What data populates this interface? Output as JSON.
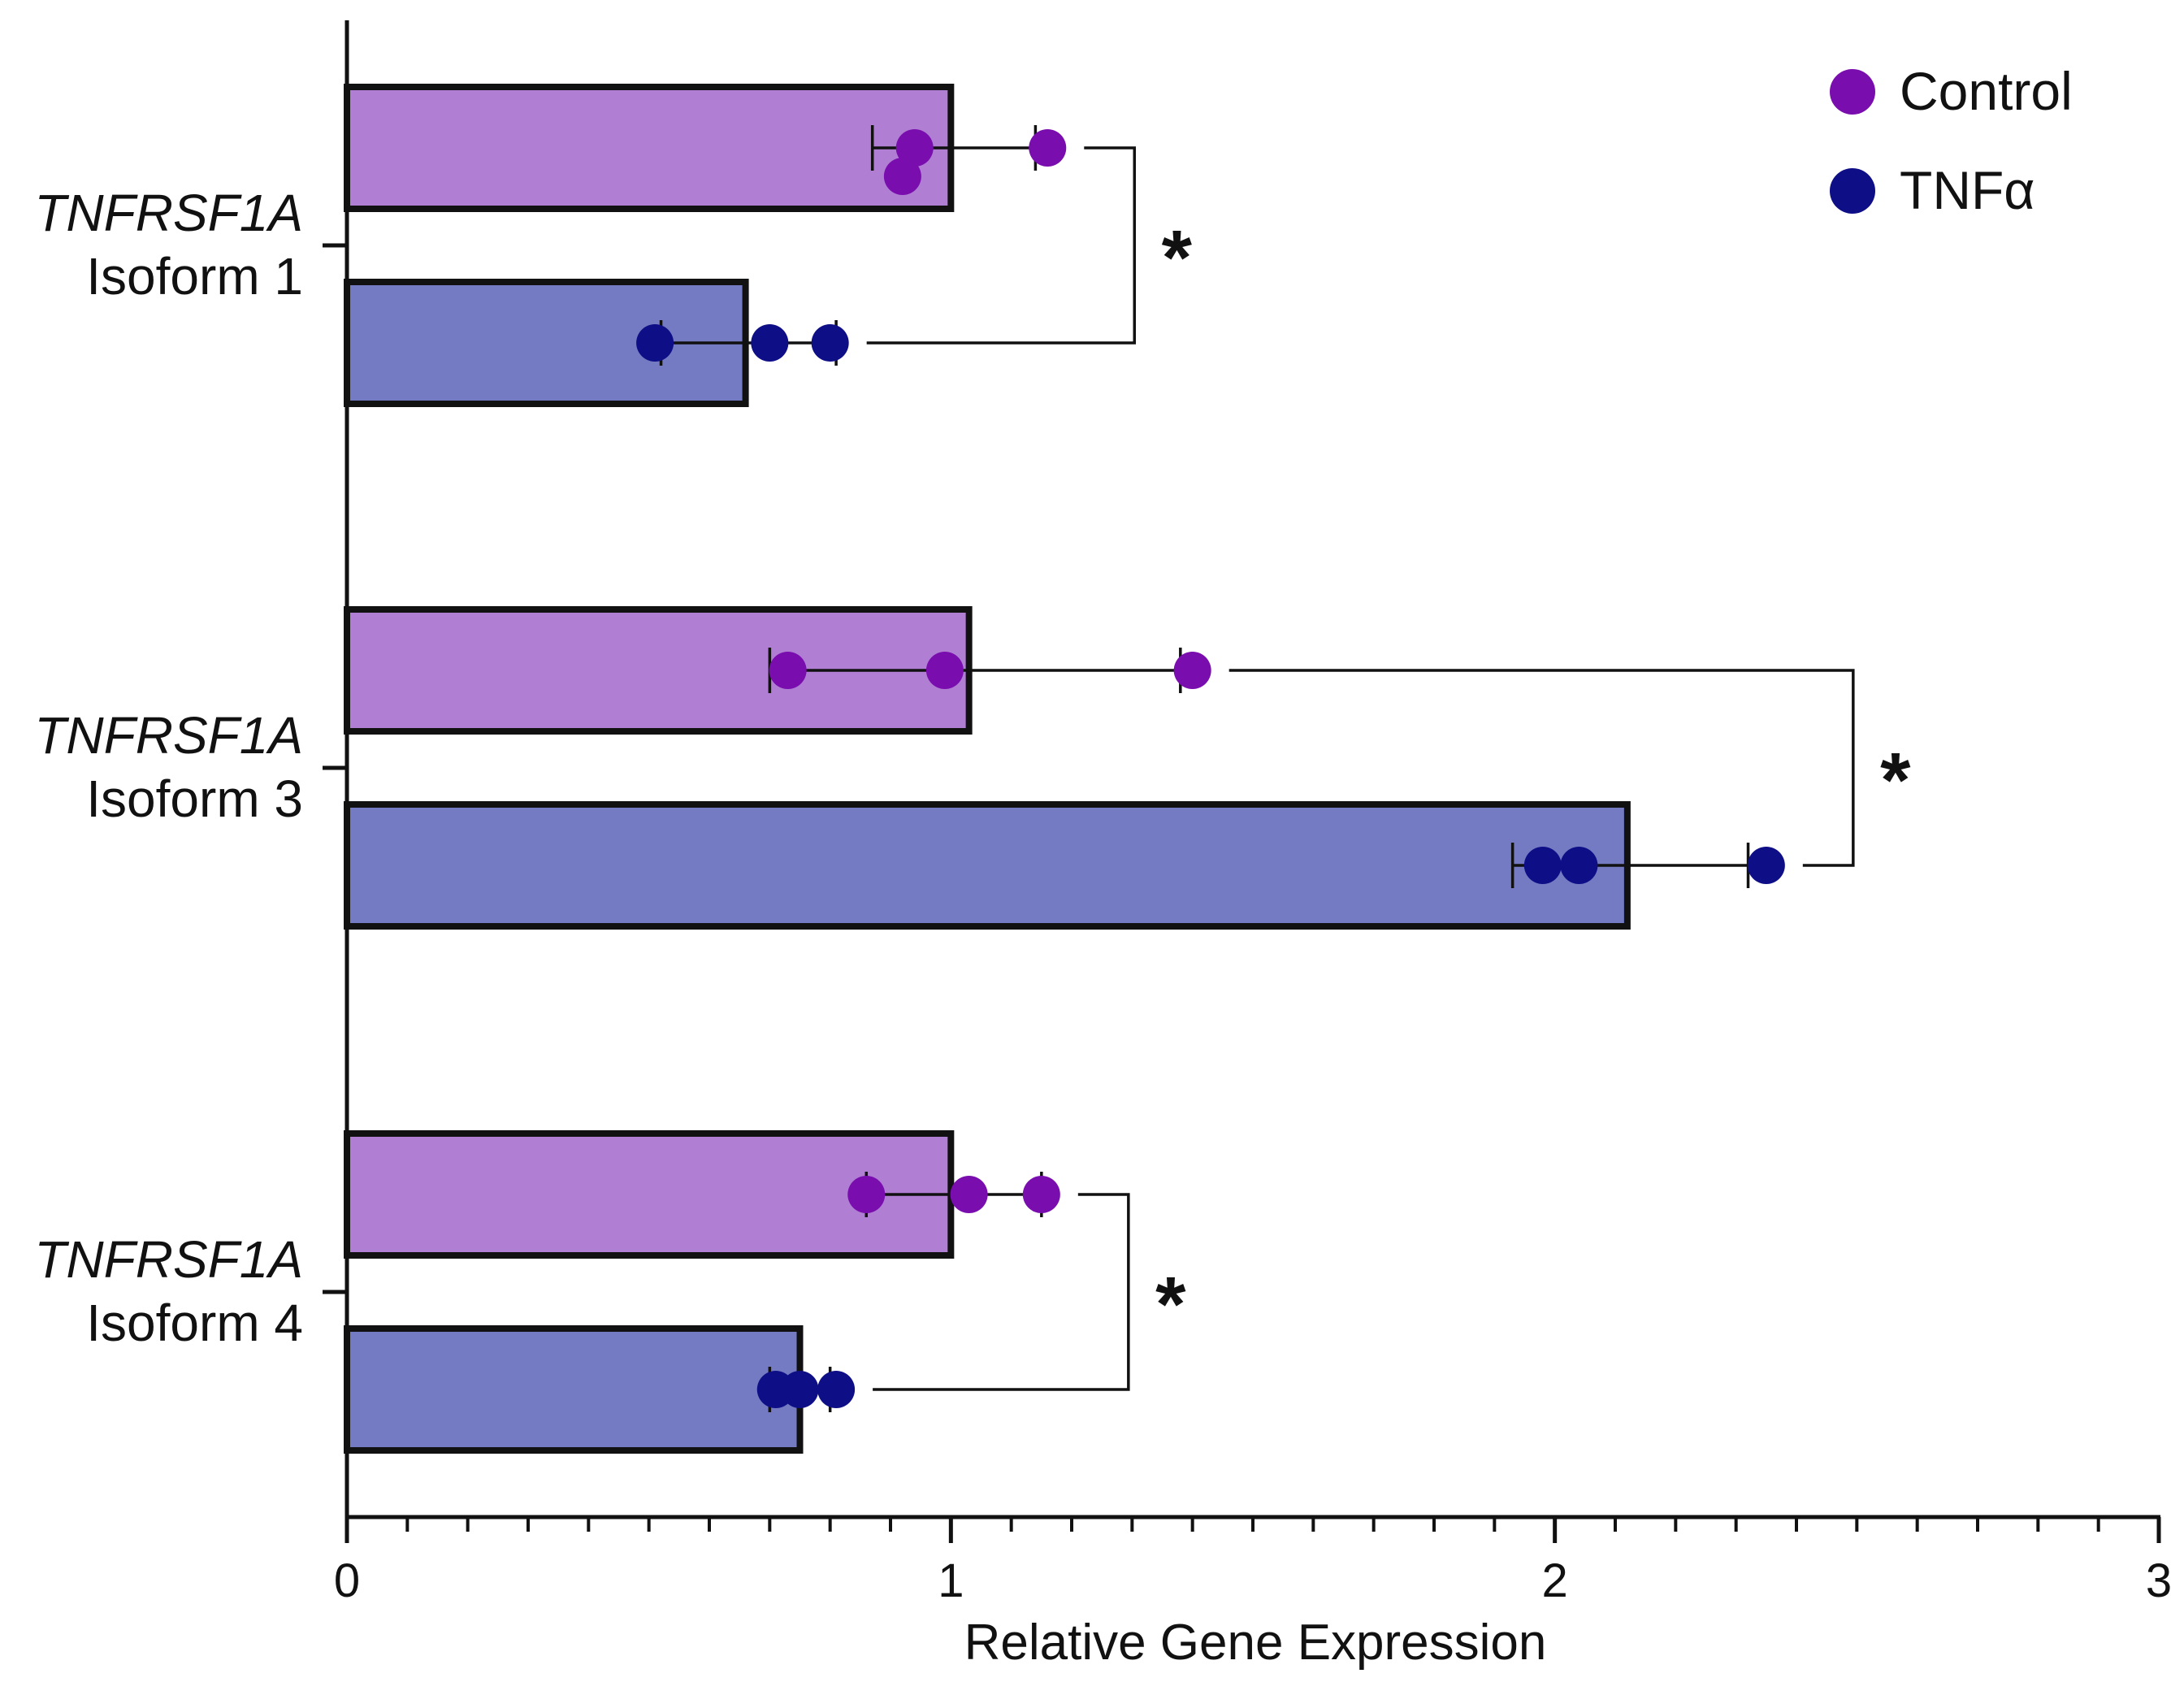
{
  "chart_data": {
    "type": "bar",
    "orientation": "horizontal",
    "xlabel": "Relative Gene Expression",
    "xlim": [
      0,
      3
    ],
    "xticks": [
      0,
      1,
      2,
      3
    ],
    "xtick_labels": [
      "0",
      "1",
      "2",
      "3"
    ],
    "x_minor_step": 0.1,
    "legend_position": "top-right",
    "series": [
      {
        "name": "Control",
        "fill": "#B07FD4",
        "dot": "#7A0DAE"
      },
      {
        "name": "TNFα",
        "fill": "#747BC2",
        "dot": "#0E0E86"
      }
    ],
    "categories": [
      {
        "name": "TNFRSF1A",
        "sub": "Isoform 1",
        "significance": "*",
        "bars": [
          {
            "series": "Control",
            "value": 1.0,
            "error": [
              0.87,
              1.14
            ],
            "points": [
              0.94,
              1.16,
              0.92
            ]
          },
          {
            "series": "TNFα",
            "value": 0.66,
            "error": [
              0.52,
              0.81
            ],
            "points": [
              0.51,
              0.7,
              0.8
            ]
          }
        ]
      },
      {
        "name": "TNFRSF1A",
        "sub": "Isoform 3",
        "significance": "*",
        "bars": [
          {
            "series": "Control",
            "value": 1.03,
            "error": [
              0.7,
              1.38
            ],
            "points": [
              0.73,
              0.99,
              1.4
            ]
          },
          {
            "series": "TNFα",
            "value": 2.12,
            "error": [
              1.93,
              2.32
            ],
            "points": [
              2.04,
              2.35,
              1.98
            ]
          }
        ]
      },
      {
        "name": "TNFRSF1A",
        "sub": "Isoform 4",
        "significance": "*",
        "bars": [
          {
            "series": "Control",
            "value": 1.0,
            "error": [
              0.86,
              1.15
            ],
            "points": [
              0.86,
              1.03,
              1.15
            ]
          },
          {
            "series": "TNFα",
            "value": 0.75,
            "error": [
              0.7,
              0.8
            ],
            "points": [
              0.75,
              0.71,
              0.81
            ]
          }
        ]
      }
    ]
  }
}
